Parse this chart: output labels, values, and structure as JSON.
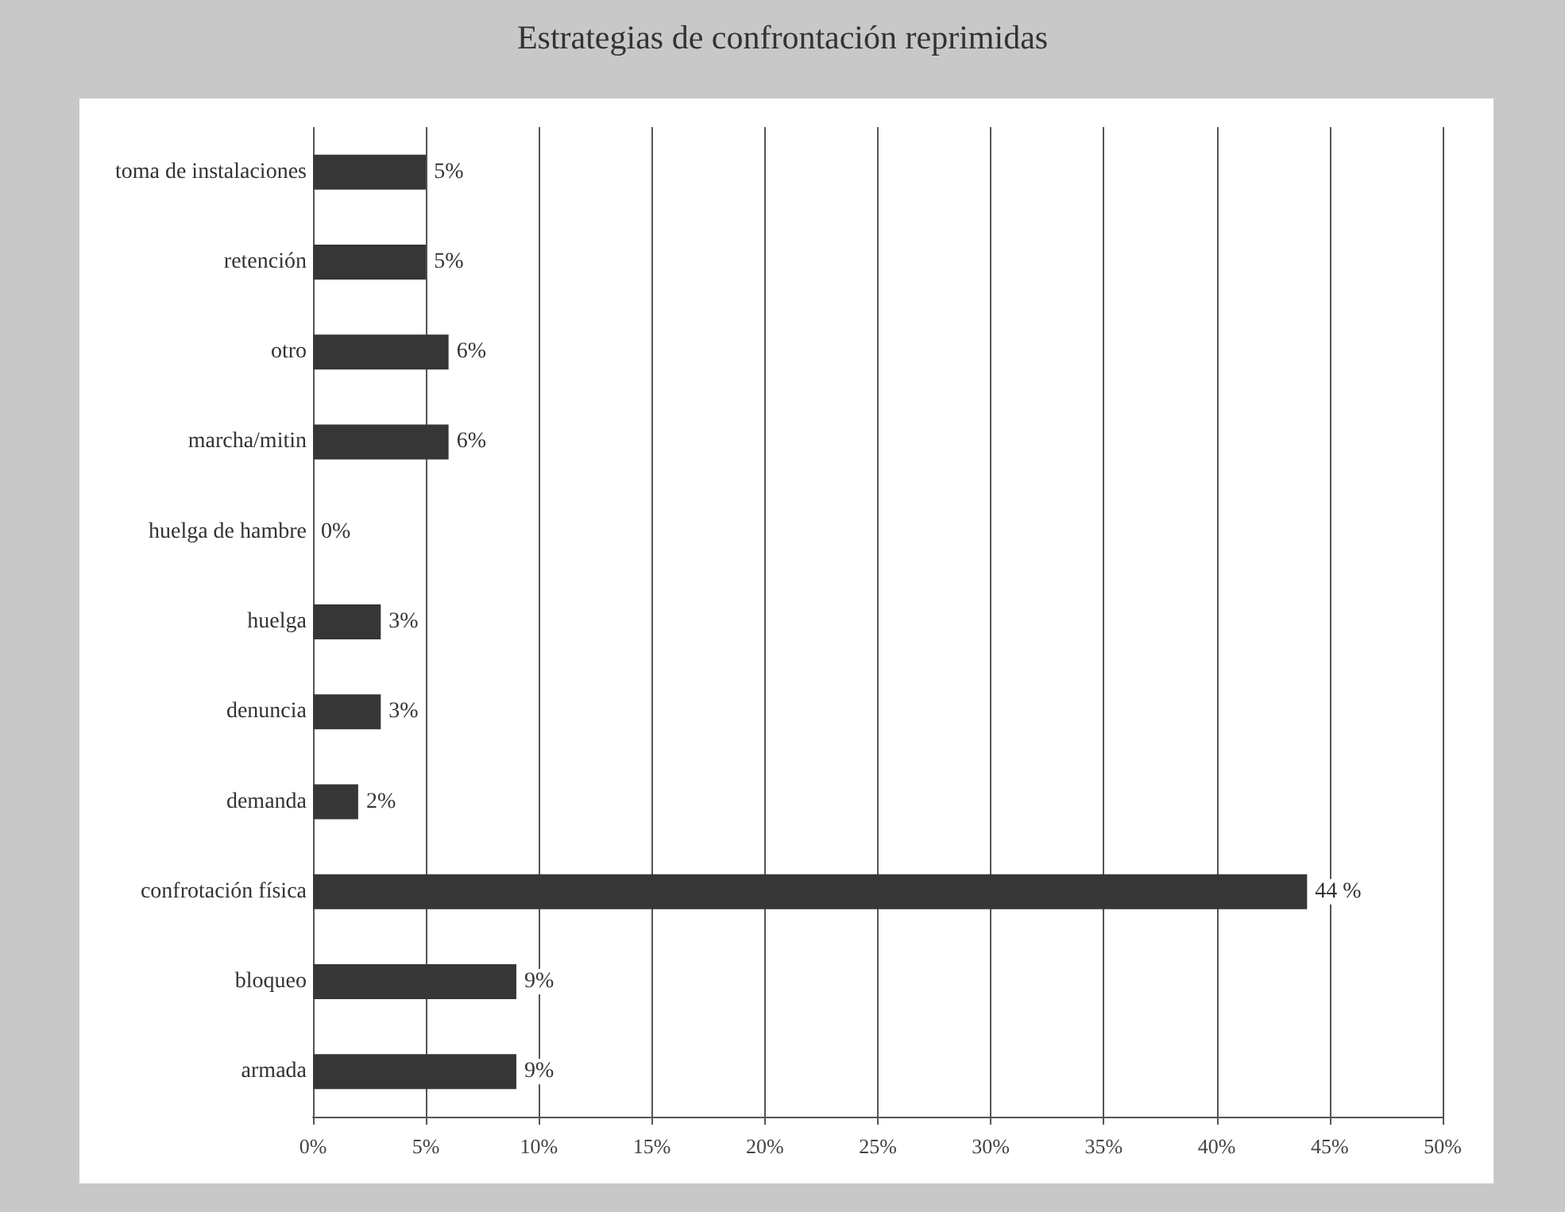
{
  "chart_data": {
    "type": "bar",
    "orientation": "horizontal",
    "title": "Estrategias de confrontación reprimidas",
    "categories": [
      "toma de instalaciones",
      "retención",
      "otro",
      "marcha/mitin",
      "huelga de hambre",
      "huelga",
      "denuncia",
      "demanda",
      "confrotación física",
      "bloqueo",
      "armada"
    ],
    "values": [
      5,
      5,
      6,
      6,
      0,
      3,
      3,
      2,
      44,
      9,
      9
    ],
    "value_labels": [
      "5%",
      "5%",
      "6%",
      "6%",
      "0%",
      "3%",
      "3%",
      "2%",
      "44 %",
      "9%",
      "9%"
    ],
    "color": "#363636",
    "xlim": [
      0,
      50
    ],
    "xticks": [
      {
        "value": 0,
        "label": "0%"
      },
      {
        "value": 5,
        "label": "5%"
      },
      {
        "value": 10,
        "label": "10%"
      },
      {
        "value": 15,
        "label": "15%"
      },
      {
        "value": 20,
        "label": "20%"
      },
      {
        "value": 25,
        "label": "25%"
      },
      {
        "value": 30,
        "label": "30%"
      },
      {
        "value": 35,
        "label": "35%"
      },
      {
        "value": 40,
        "label": "40%"
      },
      {
        "value": 45,
        "label": "45%"
      },
      {
        "value": 50,
        "label": "50%"
      }
    ],
    "grid": "x"
  }
}
